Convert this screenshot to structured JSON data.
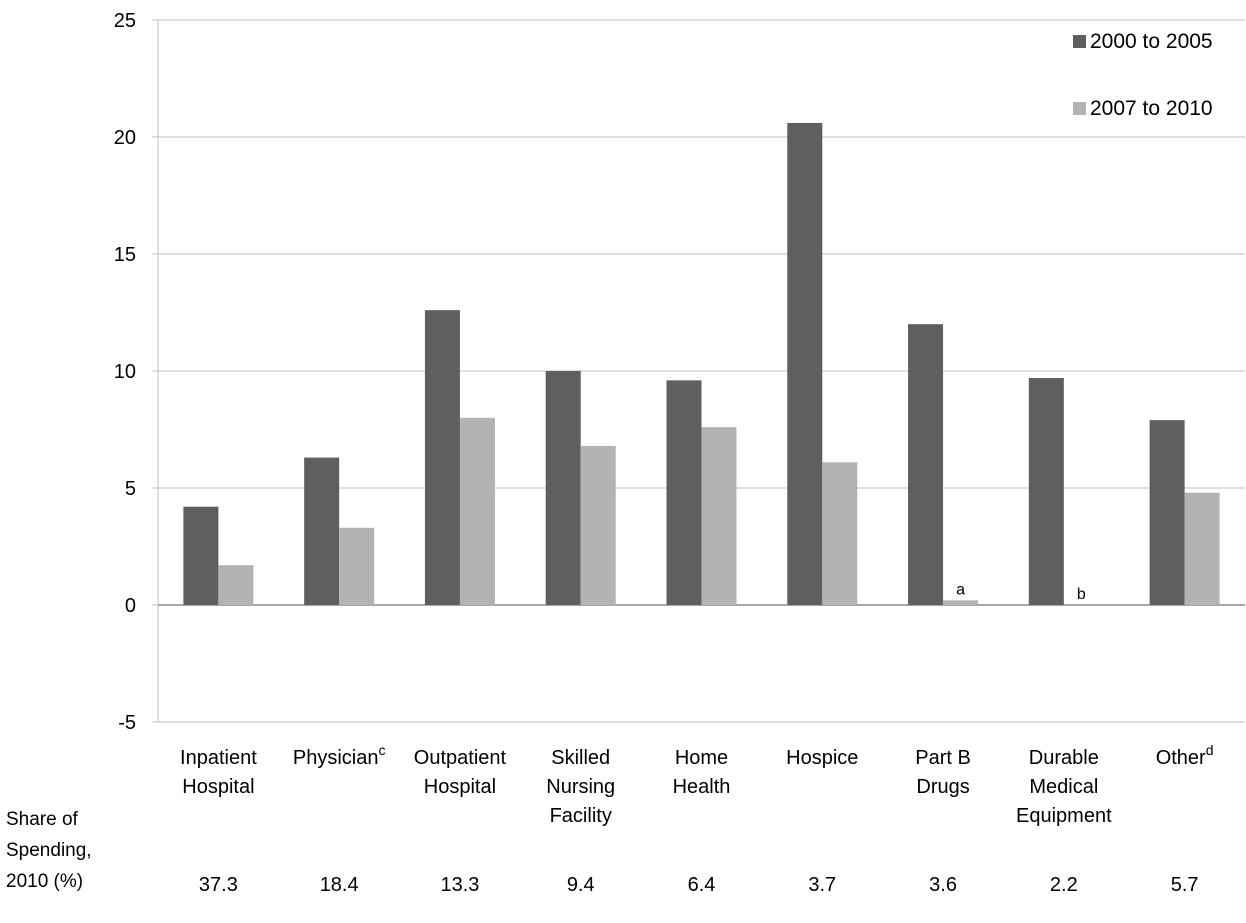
{
  "chart_data": {
    "type": "bar",
    "categories": [
      [
        "Inpatient",
        "Hospital"
      ],
      [
        "Physician"
      ],
      [
        "Outpatient",
        "Hospital"
      ],
      [
        "Skilled",
        "Nursing",
        "Facility"
      ],
      [
        "Home",
        "Health"
      ],
      [
        "Hospice"
      ],
      [
        "Part B",
        "Drugs"
      ],
      [
        "Durable",
        "Medical",
        "Equipment"
      ],
      [
        "Other"
      ]
    ],
    "category_superscripts": [
      "",
      "c",
      "",
      "",
      "",
      "",
      "",
      "",
      "d"
    ],
    "series": [
      {
        "name": "2000 to 2005",
        "color": "#5f5f5f",
        "values": [
          4.2,
          6.3,
          12.6,
          10.0,
          9.6,
          20.6,
          12.0,
          9.7,
          7.9
        ]
      },
      {
        "name": "2007 to 2010",
        "color": "#b3b3b3",
        "values": [
          1.7,
          3.3,
          8.0,
          6.8,
          7.6,
          6.1,
          0.2,
          0.0,
          4.8
        ]
      }
    ],
    "bar_notes": [
      {
        "category_index": 6,
        "series_index": 1,
        "text": "a"
      },
      {
        "category_index": 7,
        "series_index": 1,
        "text": "b"
      }
    ],
    "ylim": [
      -5,
      25
    ],
    "yticks": [
      -5,
      0,
      5,
      10,
      15,
      20,
      25
    ],
    "grid": true,
    "legend_position": "top-right",
    "share_of_spending": {
      "label": [
        "Share of",
        "Spending,",
        "2010 (%)"
      ],
      "values": [
        "37.3",
        "18.4",
        "13.3",
        "9.4",
        "6.4",
        "3.7",
        "3.6",
        "2.2",
        "5.7"
      ]
    }
  }
}
